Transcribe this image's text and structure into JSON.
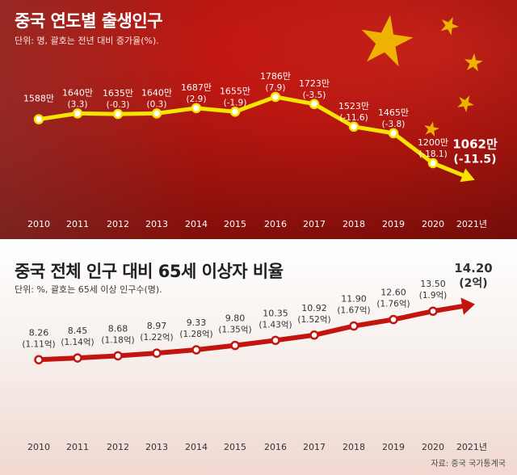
{
  "top": {
    "title": "중국 연도별 출생인구",
    "subtitle": "단위: 명, 괄호는 전년 대비 증가율(%)."
  },
  "bottom": {
    "title": "중국 전체 인구 대비 65세 이상자 비율",
    "subtitle": "단위: %, 괄호는 65세 이상 인구수(명)."
  },
  "source": "자료: 중국 국가통계국",
  "colors": {
    "line_top": "#f5e500",
    "line_bottom": "#c2150f",
    "flag_star": "#f3c200"
  },
  "chart_data": [
    {
      "type": "line",
      "title": "중국 연도별 출생인구",
      "x": [
        "2010",
        "2011",
        "2012",
        "2013",
        "2014",
        "2015",
        "2016",
        "2017",
        "2018",
        "2019",
        "2020",
        "2021년"
      ],
      "values": [
        1588,
        1640,
        1635,
        1640,
        1687,
        1655,
        1786,
        1723,
        1523,
        1465,
        1200,
        1062
      ],
      "labels": [
        "1588만",
        "1640만",
        "1635만",
        "1640만",
        "1687만",
        "1655만",
        "1786만",
        "1723만",
        "1523만",
        "1465만",
        "1200만",
        "1062만"
      ],
      "sublabels": [
        "",
        "(3.3)",
        "(-0.3)",
        "(0.3)",
        "(2.9)",
        "(-1.9)",
        "(7.9)",
        "(-3.5)",
        "(-11.6)",
        "(-3.8)",
        "(-18.1)",
        "(-11.5)"
      ],
      "ylim": [
        1000,
        1900
      ]
    },
    {
      "type": "line",
      "title": "중국 전체 인구 대비 65세 이상자 비율",
      "x": [
        "2010",
        "2011",
        "2012",
        "2013",
        "2014",
        "2015",
        "2016",
        "2017",
        "2018",
        "2019",
        "2020",
        "2021년"
      ],
      "values": [
        8.26,
        8.45,
        8.68,
        8.97,
        9.33,
        9.8,
        10.35,
        10.92,
        11.9,
        12.6,
        13.5,
        14.2
      ],
      "labels": [
        "8.26",
        "8.45",
        "8.68",
        "8.97",
        "9.33",
        "9.80",
        "10.35",
        "10.92",
        "11.90",
        "12.60",
        "13.50",
        "14.20"
      ],
      "sublabels": [
        "(1.11억)",
        "(1.14억)",
        "(1.18억)",
        "(1.22억)",
        "(1.28억)",
        "(1.35억)",
        "(1.43억)",
        "(1.52억)",
        "(1.67억)",
        "(1.76억)",
        "(1.9억)",
        "(2억)"
      ],
      "ylim": [
        7.5,
        15
      ]
    }
  ]
}
